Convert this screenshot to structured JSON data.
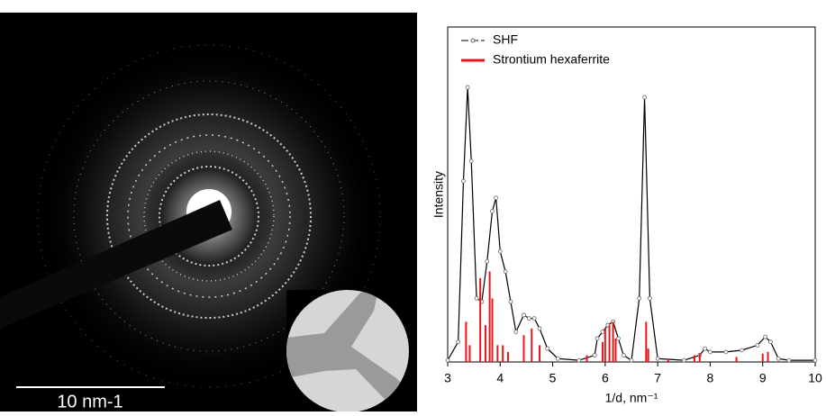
{
  "image": {
    "scale_bar_label": "10 nm-1"
  },
  "chart_data": {
    "type": "line",
    "x_label": "1/d, nm⁻¹",
    "y_label": "Intensity",
    "xlim": [
      3,
      10
    ],
    "xticks": [
      3,
      4,
      5,
      6,
      7,
      8,
      9,
      10
    ],
    "ylim": [
      0,
      100
    ],
    "legend": "top-left",
    "series": [
      {
        "name": "SHF",
        "color": "#000000",
        "x": [
          3.0,
          3.2,
          3.3,
          3.38,
          3.45,
          3.55,
          3.65,
          3.75,
          3.85,
          3.92,
          4.0,
          4.1,
          4.2,
          4.3,
          4.45,
          4.55,
          4.65,
          4.75,
          4.9,
          5.1,
          5.5,
          5.8,
          5.85,
          5.95,
          6.05,
          6.15,
          6.25,
          6.35,
          6.5,
          6.65,
          6.75,
          6.85,
          7.0,
          7.5,
          7.8,
          7.9,
          8.0,
          8.3,
          8.6,
          8.9,
          9.05,
          9.15,
          9.3,
          9.5,
          10.0
        ],
        "values": [
          0.5,
          6,
          54,
          82,
          60,
          19,
          18,
          30,
          45,
          49,
          33,
          27,
          18,
          9,
          14,
          13,
          13,
          10,
          4,
          1,
          0.5,
          2,
          7,
          9,
          11,
          12,
          7,
          2,
          0.5,
          19,
          79,
          19,
          1,
          0.5,
          2,
          4,
          3,
          3,
          3.5,
          5,
          7.5,
          6,
          1,
          0.5,
          0.5
        ]
      },
      {
        "name": "Strontium hexaferrite",
        "color": "#e8161b",
        "style": "bars",
        "x": [
          3.35,
          3.42,
          3.62,
          3.72,
          3.8,
          3.85,
          3.95,
          4.05,
          4.15,
          4.45,
          4.6,
          4.75,
          5.65,
          5.95,
          6.0,
          6.08,
          6.15,
          6.2,
          6.78,
          6.82,
          7.2,
          7.7,
          7.8,
          8.5,
          9.0,
          9.1
        ],
        "values": [
          12,
          5,
          25,
          11,
          27,
          19,
          5,
          5,
          3,
          8,
          10,
          5,
          2,
          6,
          10,
          11,
          12,
          7,
          12,
          4,
          1,
          2,
          2.5,
          1.5,
          2.5,
          3
        ]
      }
    ]
  }
}
